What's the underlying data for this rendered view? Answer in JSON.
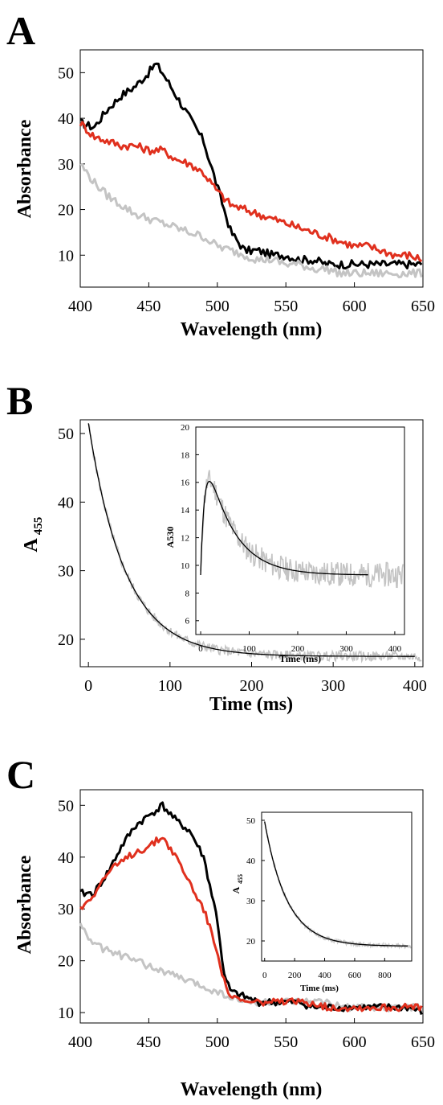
{
  "colors": {
    "black": "#000000",
    "red": "#e0301e",
    "gray": "#c4c4c4",
    "fit": "#000000"
  },
  "chart_data": [
    {
      "panel": "A",
      "type": "line",
      "xlabel": "Wavelength (nm)",
      "ylabel": "Absorbance",
      "xlim": [
        400,
        650
      ],
      "ylim": [
        3,
        55
      ],
      "xticks": [
        400,
        450,
        500,
        550,
        600,
        650
      ],
      "yticks": [
        10,
        20,
        30,
        40,
        50
      ],
      "series": [
        {
          "color": "black",
          "x": [
            400,
            410,
            420,
            430,
            440,
            450,
            455,
            460,
            470,
            480,
            490,
            500,
            510,
            520,
            530,
            540,
            550,
            560,
            570,
            580,
            590,
            600,
            610,
            620,
            630,
            640,
            650
          ],
          "values": [
            39,
            38,
            42,
            45,
            47,
            50,
            52,
            50,
            45,
            40,
            35,
            25,
            15,
            11,
            11,
            10,
            10,
            9,
            9,
            8,
            8,
            8,
            8,
            8,
            8,
            8,
            8
          ]
        },
        {
          "color": "red",
          "x": [
            400,
            410,
            420,
            430,
            440,
            450,
            460,
            470,
            480,
            490,
            500,
            510,
            520,
            530,
            540,
            550,
            560,
            570,
            580,
            590,
            600,
            610,
            620,
            630,
            640,
            650
          ],
          "values": [
            39,
            36,
            35,
            34,
            34,
            33,
            33,
            31,
            30,
            28,
            24,
            21,
            20,
            19,
            18,
            17,
            16,
            15,
            14,
            13,
            12,
            12,
            11,
            10,
            10,
            9
          ]
        },
        {
          "color": "gray",
          "x": [
            400,
            410,
            420,
            430,
            440,
            450,
            460,
            470,
            480,
            490,
            500,
            510,
            520,
            530,
            540,
            550,
            560,
            570,
            580,
            590,
            600,
            610,
            620,
            630,
            640,
            650
          ],
          "values": [
            30,
            26,
            23,
            21,
            19,
            18,
            17,
            16,
            15,
            14,
            12,
            11,
            10,
            9,
            9,
            8,
            8,
            7,
            7,
            6,
            6,
            6,
            6,
            6,
            6,
            6
          ]
        }
      ]
    },
    {
      "panel": "B",
      "type": "line",
      "xlabel": "Time (ms)",
      "ylabel_main": "A",
      "ylabel_sub": "455",
      "xlim": [
        -10,
        410
      ],
      "ylim": [
        16,
        52
      ],
      "xticks": [
        0,
        100,
        200,
        300,
        400
      ],
      "yticks": [
        20,
        30,
        40,
        50
      ],
      "data_equation": "y = 17.5 + 34*exp(-x/45)",
      "fit_equation": "y = 17.5 + 34*exp(-x/45)",
      "inset": {
        "xlabel": "Time (ms)",
        "ylabel": "A530",
        "xlim": [
          -10,
          420
        ],
        "ylim": [
          5,
          20
        ],
        "xticks": [
          0,
          100,
          200,
          300,
          400
        ],
        "yticks": [
          6,
          8,
          10,
          12,
          14,
          16,
          18,
          20
        ],
        "data_equation": "y = 9.3 + 11*(exp(-x/55) - exp(-x/8))",
        "fit_equation": "y = 9.3 + 11*(exp(-x/55) - exp(-x/8))"
      }
    },
    {
      "panel": "C",
      "type": "line",
      "xlabel": "Wavelength (nm)",
      "ylabel": "Absorbance",
      "xlim": [
        400,
        650
      ],
      "ylim": [
        8,
        53
      ],
      "xticks": [
        400,
        450,
        500,
        550,
        600,
        650
      ],
      "yticks": [
        10,
        20,
        30,
        40,
        50
      ],
      "series": [
        {
          "color": "black",
          "x": [
            400,
            410,
            420,
            430,
            440,
            450,
            460,
            470,
            480,
            490,
            500,
            505,
            510,
            520,
            530,
            540,
            550,
            560,
            570,
            580,
            590,
            600,
            610,
            620,
            630,
            640,
            650
          ],
          "values": [
            33,
            33,
            37,
            42,
            46,
            48,
            50,
            47,
            45,
            40,
            28,
            17,
            14,
            13,
            12,
            12,
            12,
            12,
            11,
            11,
            11,
            11,
            11,
            11,
            11,
            11,
            10
          ]
        },
        {
          "color": "red",
          "x": [
            400,
            410,
            420,
            430,
            440,
            450,
            460,
            470,
            480,
            490,
            500,
            505,
            510,
            520,
            530,
            540,
            550,
            560,
            570,
            580,
            590,
            600,
            610,
            620,
            630,
            640,
            650
          ],
          "values": [
            30,
            33,
            37,
            39,
            41,
            42,
            44,
            40,
            35,
            30,
            22,
            16,
            13,
            12,
            12,
            12,
            12,
            12,
            12,
            11,
            11,
            11,
            11,
            11,
            11,
            11,
            11
          ]
        },
        {
          "color": "gray",
          "x": [
            400,
            410,
            420,
            430,
            440,
            450,
            460,
            470,
            480,
            490,
            500,
            510,
            520,
            530,
            540,
            550,
            560,
            570,
            580,
            590,
            600,
            610,
            620,
            630,
            640,
            650
          ],
          "values": [
            27,
            23,
            22,
            21,
            20,
            19,
            18,
            17,
            16,
            15,
            14,
            13,
            12,
            12,
            12,
            12,
            12,
            12,
            12,
            11,
            11,
            11,
            11,
            11,
            11,
            11
          ]
        }
      ],
      "inset": {
        "xlabel": "Time (ms)",
        "ylabel_main": "A",
        "ylabel_sub": "455",
        "xlim": [
          -20,
          980
        ],
        "ylim": [
          15,
          52
        ],
        "xticks": [
          0,
          200,
          400,
          600,
          800
        ],
        "yticks": [
          20,
          30,
          40,
          50
        ],
        "data_equation": "y = 18.7 + 31*exp(-x/150)",
        "fit_equation": "y = 18.7 + 31*exp(-x/150)"
      }
    }
  ],
  "labels": {
    "panel_a": "A",
    "panel_b": "B",
    "panel_c": "C",
    "a_xlabel": "Wavelength (nm)",
    "a_ylabel": "Absorbance",
    "b_xlabel": "Time (ms)",
    "b_ylabel_main": "A",
    "b_ylabel_sub": "455",
    "b_inset_xlabel": "Time (ms)",
    "b_inset_ylabel": "A530",
    "c_xlabel": "Wavelength (nm)",
    "c_ylabel": "Absorbance",
    "c_inset_xlabel": "Time (ms)",
    "c_inset_ylabel_main": "A",
    "c_inset_ylabel_sub": "455"
  }
}
